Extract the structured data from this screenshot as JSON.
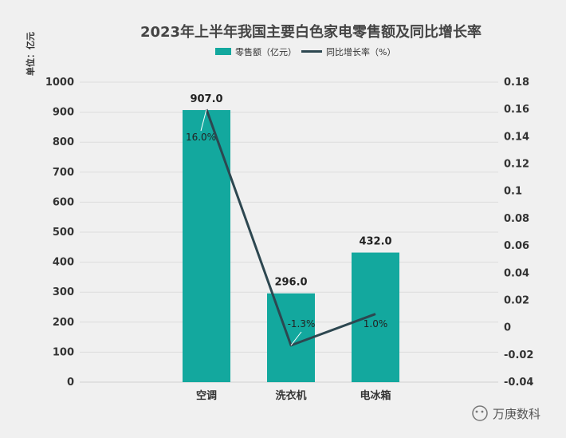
{
  "chart_data": {
    "type": "bar",
    "title": "2023年上半年我国主要白色家电零售额及同比增长率",
    "unit_label": "单位：亿元",
    "categories": [
      "空调",
      "洗衣机",
      "电冰箱"
    ],
    "series": [
      {
        "name": "零售额（亿元）",
        "type": "bar",
        "axis": "left",
        "values": [
          907.0,
          296.0,
          432.0
        ],
        "labels": [
          "907.0",
          "296.0",
          "432.0"
        ],
        "color": "#13a89e"
      },
      {
        "name": "同比增长率（%）",
        "type": "line",
        "axis": "right",
        "values": [
          0.16,
          -0.013,
          0.01
        ],
        "labels": [
          "16.0%",
          "-1.3%",
          "1.0%"
        ],
        "color": "#2d4750"
      }
    ],
    "y_left": {
      "min": 0,
      "max": 1000,
      "ticks": [
        "0",
        "100",
        "200",
        "300",
        "400",
        "500",
        "600",
        "700",
        "800",
        "900",
        "1000"
      ]
    },
    "y_right": {
      "min": -0.04,
      "max": 0.18,
      "ticks": [
        "-0.04",
        "-0.02",
        "0",
        "0.02",
        "0.04",
        "0.06",
        "0.08",
        "0.1",
        "0.12",
        "0.14",
        "0.16",
        "0.18"
      ]
    },
    "grid": true,
    "legend_position": "top-center"
  },
  "watermark": "万庚数科",
  "watermark_icon": "wechat-icon"
}
